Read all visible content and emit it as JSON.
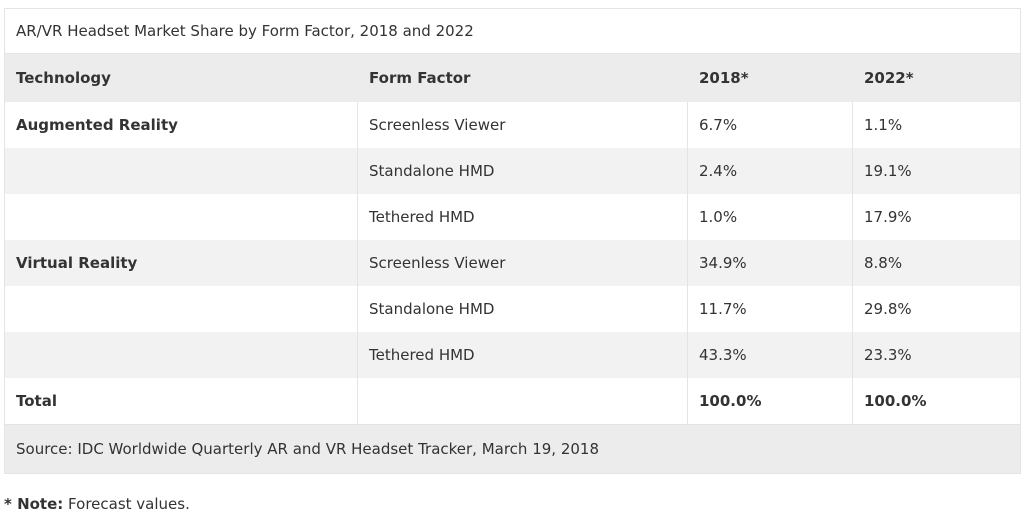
{
  "table": {
    "caption": "AR/VR Headset Market Share by Form Factor, 2018 and 2022",
    "headers": [
      "Technology",
      "Form Factor",
      "2018*",
      "2022*"
    ],
    "rows": [
      {
        "technology": "Augmented Reality",
        "form_factor": "Screenless Viewer",
        "y2018": "6.7%",
        "y2022": "1.1%"
      },
      {
        "technology": "",
        "form_factor": "Standalone HMD",
        "y2018": "2.4%",
        "y2022": "19.1%"
      },
      {
        "technology": "",
        "form_factor": "Tethered HMD",
        "y2018": "1.0%",
        "y2022": "17.9%"
      },
      {
        "technology": "Virtual Reality",
        "form_factor": "Screenless Viewer",
        "y2018": "34.9%",
        "y2022": "8.8%"
      },
      {
        "technology": "",
        "form_factor": "Standalone HMD",
        "y2018": "11.7%",
        "y2022": "29.8%"
      },
      {
        "technology": "",
        "form_factor": "Tethered HMD",
        "y2018": "43.3%",
        "y2022": "23.3%"
      }
    ],
    "total": {
      "label": "Total",
      "form_factor": "",
      "y2018": "100.0%",
      "y2022": "100.0%"
    },
    "source": "Source: IDC Worldwide Quarterly AR and VR Headset Tracker, March 19, 2018"
  },
  "note": {
    "prefix": "* Note:",
    "text": " Forecast values."
  }
}
